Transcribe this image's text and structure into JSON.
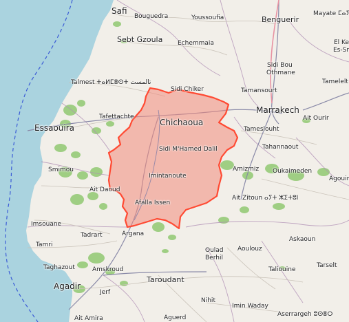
{
  "map": {
    "region_fill": "#f28b7b",
    "region_stroke": "#ff4a33",
    "sea_color": "#aad3df",
    "land_color": "#f2efe9",
    "forest_color": "#8bc66a",
    "labels": {
      "safi": "Safi",
      "bouguedra": "Bouguedra",
      "youssoufia": "Youssoufia",
      "benguerir": "Benguerir",
      "mayate": "Mayate ⵎⴰⵢⴰⵜ",
      "el_kel": "El Kel",
      "es_sraf": "Es-Sraf",
      "sebt_gzoula": "Sebt Gzoula",
      "echemmaia": "Echemmaia",
      "sidi_bou_othmane_1": "Sidi Bou",
      "sidi_bou_othmane_2": "Othmane",
      "talmest": "Talmest ⵜⴰⵍⵎⴻⵙⵜ تالمست",
      "tamelelt": "Tamelelt",
      "sidi_chiker": "Sidi Chiker",
      "tamansourt": "Tamansourt",
      "marrakech": "Marrakech",
      "essaouira": "Essaouira",
      "tafettachte": "Tafettachte",
      "chichaoua": "Chichaoua",
      "ait_ourir": "Ait Ourir",
      "tameslouht": "Tameslouht",
      "sidi_mhamed_dalil": "Sidi M'Hamed Dalil",
      "tahannaout": "Tahannaout",
      "smimou": "Smimou",
      "amizmiz": "Amizmiz",
      "oukaimeden": "Oukaimeden",
      "imintanoute": "Imintanoute",
      "agouim": "Agouim",
      "ait_daoud": "Ait Daoud",
      "ait_zitoun": "Ait Zitoun ⴰⵢⵜ ⵣⵉⵜⵓⵏ",
      "afalla_issen": "Afalla Issen",
      "imsouane": "Imsouane",
      "tadrart": "Tadrart",
      "argana": "Argana",
      "askaoun": "Askaoun",
      "tamri": "Tamri",
      "oulad_berhil_1": "Oulad",
      "oulad_berhil_2": "Berhil",
      "aoulouz": "Aoulouz",
      "taghazout": "Taghazout",
      "amskroud": "Amskroud",
      "tarselt": "Tarselt",
      "talioune": "Taliouine",
      "agadir": "Agadir",
      "taroudant": "Taroudant",
      "jerf": "Jerf",
      "nihit": "Nihit",
      "imin_waday": "Imin Waday",
      "aguerd": "Aguerd",
      "asserrageh": "Aserrargeh ⵓⵙⴻⵔ",
      "ait_amira": "Ait Amira"
    }
  }
}
